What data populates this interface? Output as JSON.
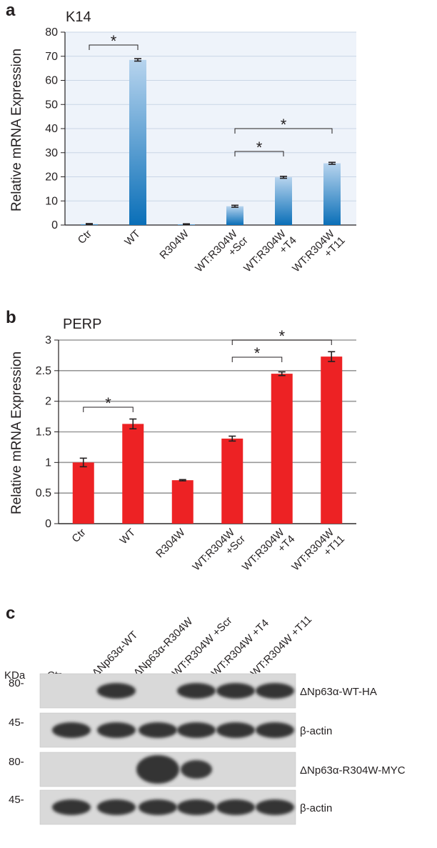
{
  "panels": {
    "a": "a",
    "b": "b",
    "c": "c"
  },
  "chart_data": [
    {
      "type": "bar",
      "panel": "a",
      "title": "K14",
      "ylabel": "Relative mRNA Expression",
      "xlabel": "",
      "categories": [
        "Ctr",
        "WT",
        "R304W",
        "WT:R304W +Scr",
        "WT:R304W +T4",
        "WT:R304W +T11"
      ],
      "category_lines": [
        [
          "Ctr"
        ],
        [
          "WT"
        ],
        [
          "R304W"
        ],
        [
          "WT:R304W",
          "+Scr"
        ],
        [
          "WT:R304W",
          "+T4"
        ],
        [
          "WT:R304W",
          "+T11"
        ]
      ],
      "values": [
        0.4,
        68.5,
        0.3,
        7.8,
        19.8,
        25.6
      ],
      "errors": [
        0.2,
        0.5,
        0.2,
        0.4,
        0.4,
        0.4
      ],
      "ylim": [
        0,
        80
      ],
      "yticks": [
        0,
        10,
        20,
        30,
        40,
        50,
        60,
        70,
        80
      ],
      "grid": true,
      "bar_color_top": "#b7d4ee",
      "bar_color_bottom": "#0a6fb8",
      "significance": [
        {
          "from": 0,
          "to": 1,
          "label": "*"
        },
        {
          "from": 3,
          "to": 4,
          "label": "*"
        },
        {
          "from": 3,
          "to": 5,
          "label": "*"
        }
      ]
    },
    {
      "type": "bar",
      "panel": "b",
      "title": "PERP",
      "ylabel": "Relative mRNA Expression",
      "xlabel": "",
      "categories": [
        "Ctr",
        "WT",
        "R304W",
        "WT:R304W +Scr",
        "WT:R304W +T4",
        "WT:R304W +T11"
      ],
      "category_lines": [
        [
          "Ctr"
        ],
        [
          "WT"
        ],
        [
          "R304W"
        ],
        [
          "WT:R304W",
          "+Scr"
        ],
        [
          "WT:R304W",
          "+T4"
        ],
        [
          "WT:R304W",
          "+T11"
        ]
      ],
      "values": [
        1.0,
        1.63,
        0.71,
        1.39,
        2.45,
        2.73
      ],
      "errors": [
        0.07,
        0.08,
        0.01,
        0.04,
        0.03,
        0.08
      ],
      "ylim": [
        0,
        3
      ],
      "yticks": [
        0,
        0.5,
        1,
        1.5,
        2,
        2.5,
        3
      ],
      "ytick_labels": [
        "0",
        "0.5",
        "1",
        "1.5",
        "2",
        "2.5",
        "3"
      ],
      "grid": true,
      "bar_color": "#ed2224",
      "significance": [
        {
          "from": 0,
          "to": 1,
          "label": "*"
        },
        {
          "from": 3,
          "to": 4,
          "label": "*"
        },
        {
          "from": 3,
          "to": 5,
          "label": "*"
        }
      ]
    }
  ],
  "blot": {
    "kda_label": "KDa",
    "lanes": [
      "Ctr",
      "ΔNp63α-WT",
      "ΔNp63α-R304W",
      "WT:R304W +Scr",
      "WT:R304W +T4",
      "WT:R304W +T11"
    ],
    "rows": [
      {
        "kda": "80-",
        "label": "ΔNp63α-WT-HA",
        "bands": [
          0,
          1,
          0,
          1,
          1,
          1
        ]
      },
      {
        "kda": "45-",
        "label": "β-actin",
        "bands": [
          1,
          1,
          1,
          1,
          1,
          1
        ]
      },
      {
        "kda": "80-",
        "label": "ΔNp63α-R304W-MYC",
        "bands": [
          0,
          0,
          1,
          0.8,
          0,
          0
        ]
      },
      {
        "kda": "45-",
        "label": "β-actin",
        "bands": [
          1,
          1,
          1,
          1,
          1,
          1
        ]
      }
    ]
  }
}
